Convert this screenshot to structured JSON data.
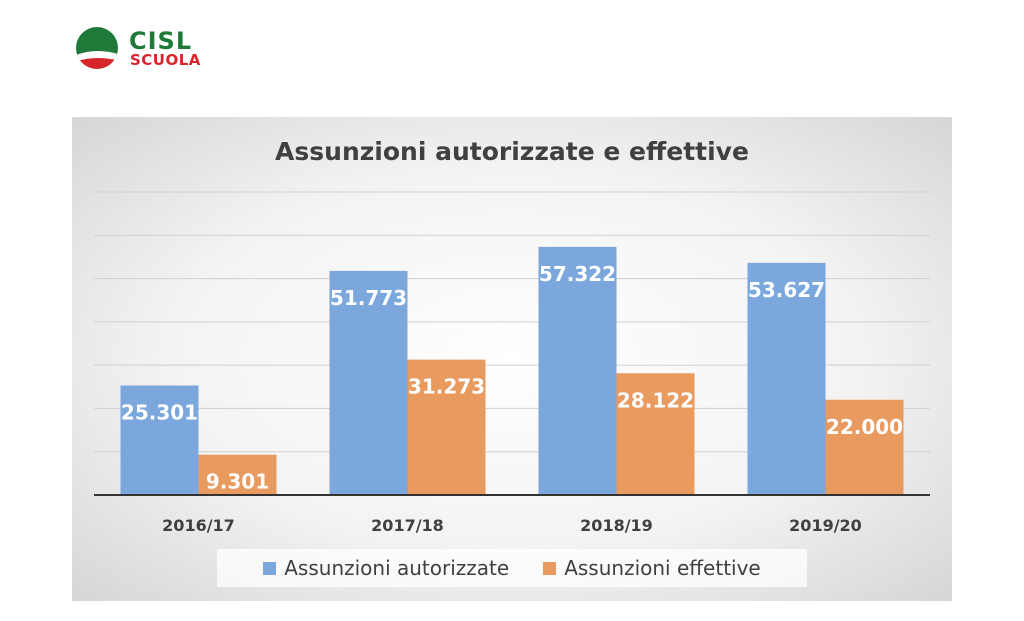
{
  "logo": {
    "line1": "CISL",
    "line2": "SCUOLA",
    "colors": {
      "green": "#1f7a3a",
      "red": "#d7262b"
    }
  },
  "chart_data": {
    "type": "bar",
    "title": "Assunzioni autorizzate e effettive",
    "categories": [
      "2016/17",
      "2017/18",
      "2018/19",
      "2019/20"
    ],
    "series": [
      {
        "name": "Assunzioni autorizzate",
        "color": "#7ba7dc",
        "values": [
          25301,
          51773,
          57322,
          53627
        ],
        "labels": [
          "25.301",
          "51.773",
          "57.322",
          "53.627"
        ]
      },
      {
        "name": "Assunzioni effettive",
        "color": "#e89a5f",
        "values": [
          9301,
          31273,
          28122,
          22000
        ],
        "labels": [
          "9.301",
          "31.273",
          "28.122",
          "22.000"
        ]
      }
    ],
    "ylim": [
      0,
      70000
    ],
    "grid": true,
    "legend": "bottom"
  }
}
